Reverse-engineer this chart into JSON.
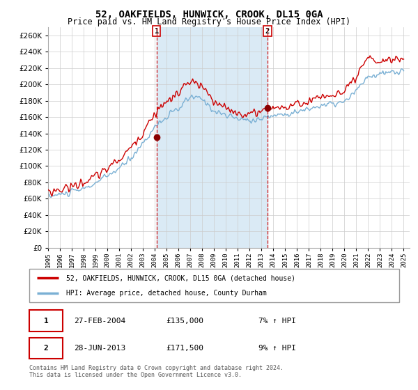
{
  "title": "52, OAKFIELDS, HUNWICK, CROOK, DL15 0GA",
  "subtitle": "Price paid vs. HM Land Registry's House Price Index (HPI)",
  "ylim": [
    0,
    270000
  ],
  "yticks": [
    0,
    20000,
    40000,
    60000,
    80000,
    100000,
    120000,
    140000,
    160000,
    180000,
    200000,
    220000,
    240000,
    260000
  ],
  "xmin": 1995.0,
  "xmax": 2025.5,
  "marker1_x": 2004.15,
  "marker1_y": 135000,
  "marker2_x": 2013.5,
  "marker2_y": 171500,
  "shade_x1": 2004.15,
  "shade_x2": 2013.5,
  "legend_line1": "52, OAKFIELDS, HUNWICK, CROOK, DL15 0GA (detached house)",
  "legend_line2": "HPI: Average price, detached house, County Durham",
  "note1_num": "1",
  "note1_date": "27-FEB-2004",
  "note1_price": "£135,000",
  "note1_hpi": "7% ↑ HPI",
  "note2_num": "2",
  "note2_date": "28-JUN-2013",
  "note2_price": "£171,500",
  "note2_hpi": "9% ↑ HPI",
  "footnote": "Contains HM Land Registry data © Crown copyright and database right 2024.\nThis data is licensed under the Open Government Licence v3.0.",
  "line1_color": "#cc0000",
  "line2_color": "#7ab0d4",
  "shade_color": "#daeaf5",
  "marker_color": "#8b0000",
  "bg_color": "#ffffff"
}
